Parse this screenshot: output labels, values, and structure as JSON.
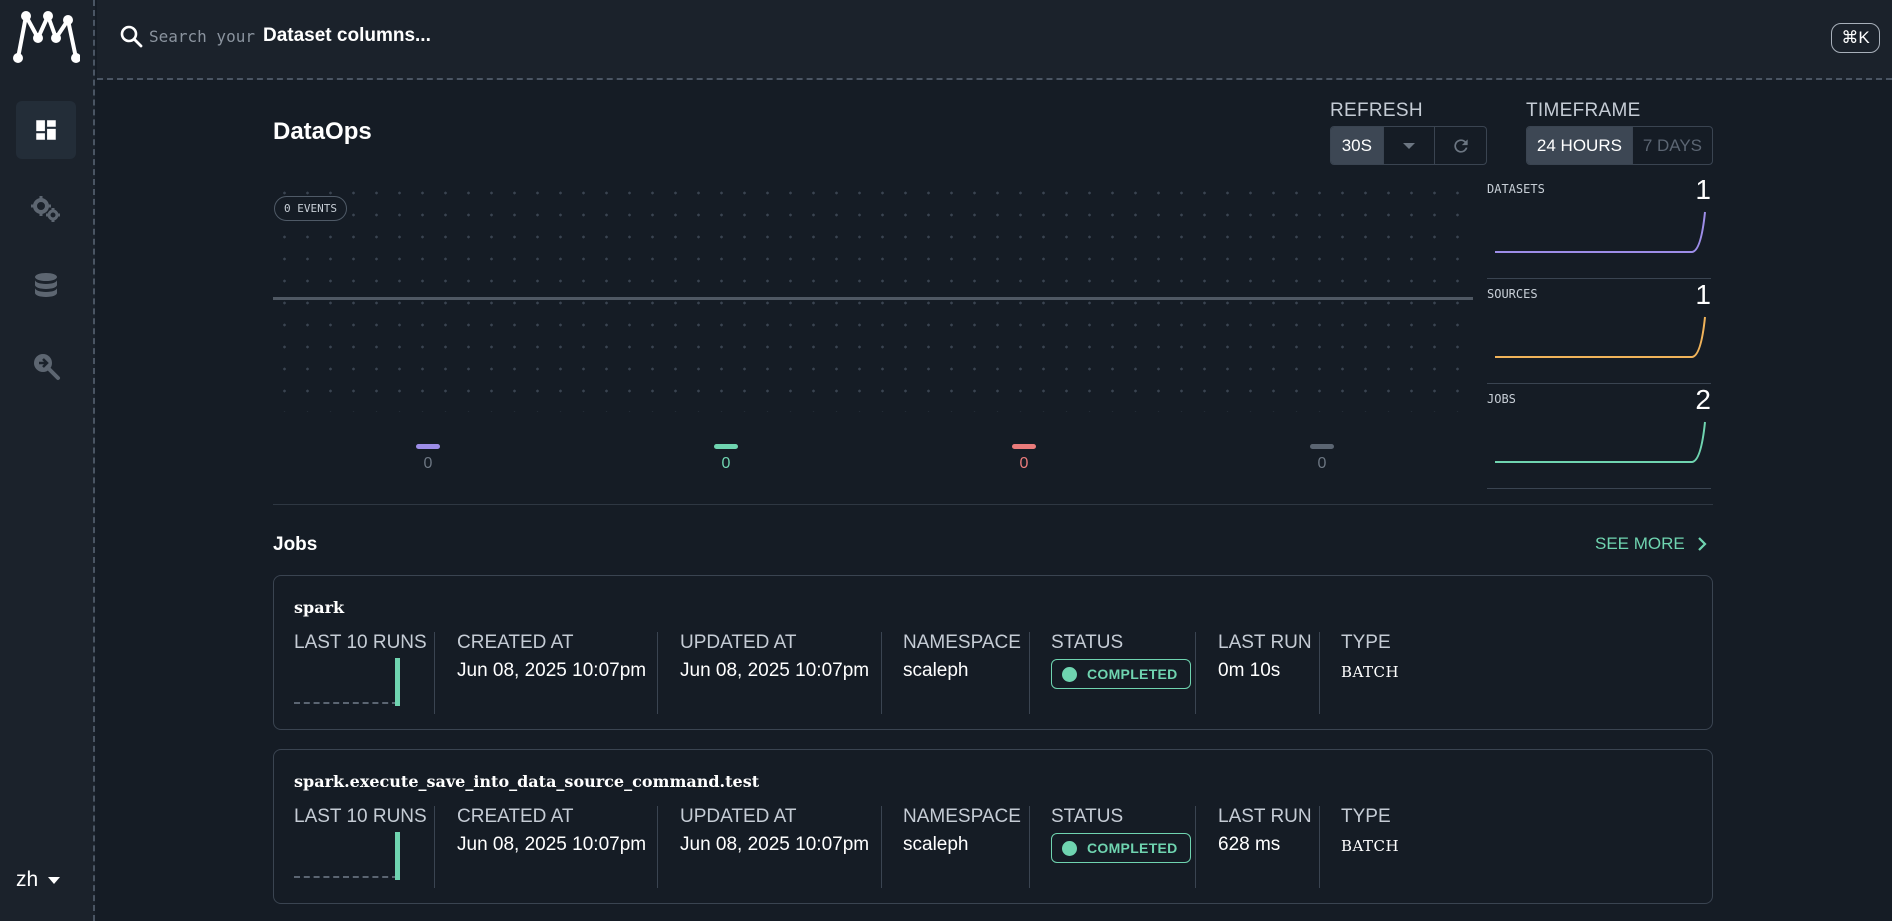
{
  "sidebar": {
    "logo": "marquez-logo",
    "items": [
      {
        "name": "dashboard",
        "icon": "dashboard-icon",
        "active": true
      },
      {
        "name": "jobs",
        "icon": "gears-icon",
        "active": false
      },
      {
        "name": "datasets",
        "icon": "database-icon",
        "active": false
      },
      {
        "name": "lineage-search",
        "icon": "search-arrow-icon",
        "active": false
      }
    ],
    "language": "zh"
  },
  "header": {
    "search_placeholder": "Search your",
    "search_emphasis": "Dataset columns...",
    "shortcut": "⌘K"
  },
  "page": {
    "title": "DataOps",
    "refresh": {
      "label": "REFRESH",
      "value": "30S"
    },
    "timeframe": {
      "label": "TIMEFRAME",
      "options": [
        "24 HOURS",
        "7 DAYS"
      ],
      "selected": "24 HOURS"
    }
  },
  "events": {
    "chip": "0 EVENTS",
    "legend": [
      {
        "value": "0",
        "color": "#9d8de8"
      },
      {
        "value": "0",
        "color": "#6fd4b0"
      },
      {
        "value": "0",
        "color": "#ea7b7b"
      },
      {
        "value": "0",
        "color": "#5b6572"
      }
    ]
  },
  "stats": [
    {
      "label": "DATASETS",
      "value": "1",
      "color": "#9d8de8"
    },
    {
      "label": "SOURCES",
      "value": "1",
      "color": "#f0b35a"
    },
    {
      "label": "JOBS",
      "value": "2",
      "color": "#6fd4b0"
    }
  ],
  "jobs_section": {
    "title": "Jobs",
    "see_more": "SEE MORE",
    "columns": {
      "runs": "LAST 10 RUNS",
      "created": "CREATED AT",
      "updated": "UPDATED AT",
      "namespace": "NAMESPACE",
      "status": "STATUS",
      "last_run": "LAST RUN",
      "type": "TYPE"
    },
    "jobs": [
      {
        "name": "spark",
        "created": "Jun 08, 2025 10:07pm",
        "updated": "Jun 08, 2025 10:07pm",
        "namespace": "scaleph",
        "status": "COMPLETED",
        "last_run": "0m 10s",
        "type": "BATCH"
      },
      {
        "name": "spark.execute_save_into_data_source_command.test",
        "created": "Jun 08, 2025 10:07pm",
        "updated": "Jun 08, 2025 10:07pm",
        "namespace": "scaleph",
        "status": "COMPLETED",
        "last_run": "628 ms",
        "type": "BATCH"
      }
    ]
  }
}
